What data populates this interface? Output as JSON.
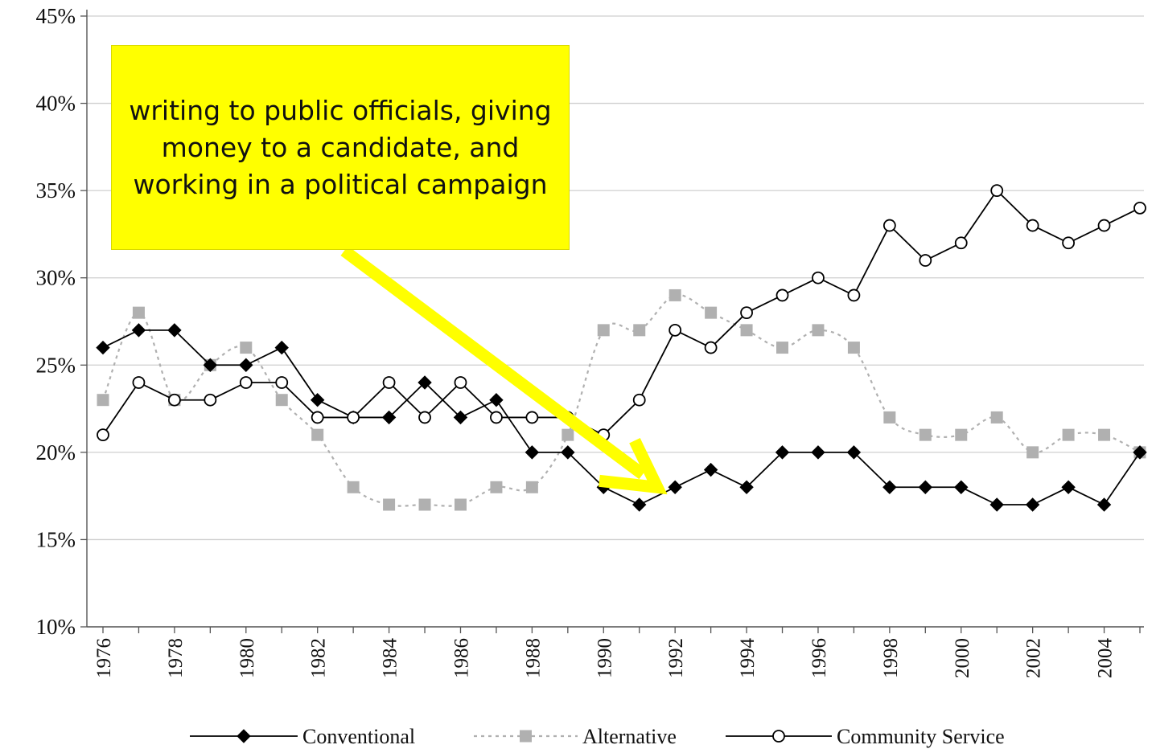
{
  "chart_data": {
    "type": "line",
    "title": "",
    "xlabel": "",
    "ylabel": "",
    "ylim": [
      10,
      45
    ],
    "y_ticks": [
      "10%",
      "15%",
      "20%",
      "25%",
      "30%",
      "35%",
      "40%",
      "45%"
    ],
    "x_tick_labels": [
      "1976",
      "1978",
      "1980",
      "1982",
      "1984",
      "1986",
      "1988",
      "1990",
      "1992",
      "1994",
      "1996",
      "1998",
      "2000",
      "2002",
      "2004"
    ],
    "x": [
      1976,
      1977,
      1978,
      1979,
      1980,
      1981,
      1982,
      1983,
      1984,
      1985,
      1986,
      1987,
      1988,
      1989,
      1990,
      1991,
      1992,
      1993,
      1994,
      1995,
      1996,
      1997,
      1998,
      1999,
      2000,
      2001,
      2002,
      2003,
      2004,
      2005
    ],
    "grid": true,
    "legend_placement": "bottom",
    "series": [
      {
        "name": "Conventional",
        "color": "#000000",
        "style": "solid",
        "marker": "diamond",
        "values": [
          26,
          27,
          27,
          25,
          25,
          26,
          23,
          22,
          22,
          24,
          22,
          23,
          20,
          20,
          18,
          17,
          18,
          19,
          18,
          20,
          20,
          20,
          18,
          18,
          18,
          17,
          17,
          18,
          17,
          20
        ]
      },
      {
        "name": "Alternative",
        "color": "#b0b0b0",
        "style": "dotted",
        "marker": "square",
        "values": [
          23,
          28,
          23,
          25,
          26,
          23,
          21,
          18,
          17,
          17,
          17,
          18,
          18,
          21,
          27,
          27,
          29,
          28,
          27,
          26,
          27,
          26,
          22,
          21,
          21,
          22,
          20,
          21,
          21,
          20
        ]
      },
      {
        "name": "Community Service",
        "color": "#000000",
        "style": "solid",
        "marker": "circle",
        "values": [
          21,
          24,
          23,
          23,
          24,
          24,
          22,
          22,
          24,
          22,
          24,
          22,
          22,
          22,
          21,
          23,
          27,
          26,
          28,
          29,
          30,
          29,
          33,
          31,
          32,
          35,
          33,
          32,
          33,
          34
        ]
      }
    ],
    "annotation": {
      "text": "writing to public officials, giving money to a candidate, and working in a political campaign",
      "background": "#ffff00",
      "arrow_color": "#ffff00",
      "points_to": {
        "x": 1991.5,
        "y": 18
      }
    }
  }
}
